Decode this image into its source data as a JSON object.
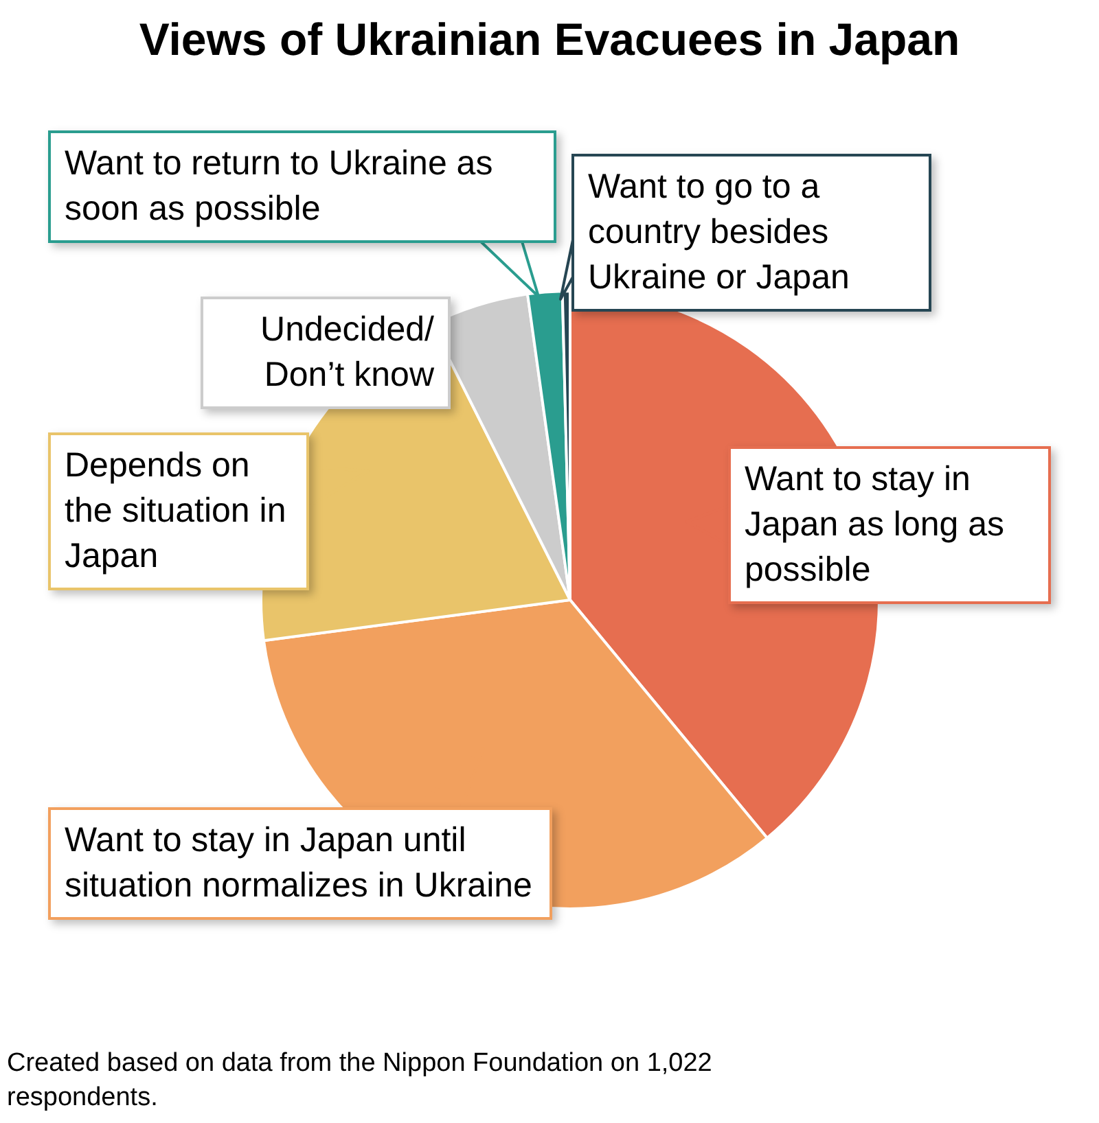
{
  "chart_data": {
    "type": "pie",
    "title": "Views of Ukrainian Evacuees in Japan",
    "categories": [
      "Want to stay in Japan as long as possible",
      "Want to stay in Japan until situation normalizes in Ukraine",
      "Depends on the situation in Japan",
      "Undecided/ Don’t know",
      "Want to return to Ukraine as soon as possible",
      "Want to go to a country besides Ukraine or Japan"
    ],
    "values": [
      39.0,
      33.9,
      19.7,
      5.2,
      1.8,
      0.4
    ],
    "colors": [
      "#e66e50",
      "#f2a05e",
      "#e9c46a",
      "#cccccc",
      "#2a9d8f",
      "#264653"
    ],
    "legend": false,
    "annotations": [
      "Created based on data from the Nippon Foundation on 1,022 respondents."
    ]
  }
}
